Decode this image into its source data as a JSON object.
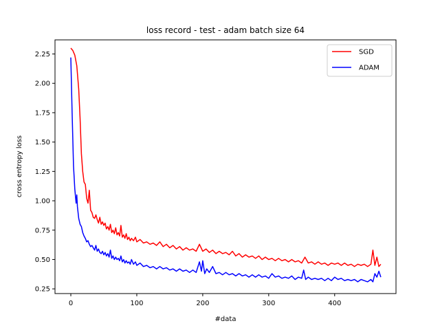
{
  "chart_data": {
    "type": "line",
    "title": "loss record - test - adam batch size 64",
    "xlabel": "#data",
    "ylabel": "cross entropy loss",
    "xlim": [
      -24,
      493
    ],
    "ylim": [
      0.21,
      2.37
    ],
    "xticks": [
      0,
      100,
      200,
      300,
      400
    ],
    "xtick_labels": [
      "0",
      "100",
      "200",
      "300",
      "400"
    ],
    "yticks": [
      0.25,
      0.5,
      0.75,
      1.0,
      1.25,
      1.5,
      1.75,
      2.0,
      2.25
    ],
    "ytick_labels": [
      "0.25",
      "0.50",
      "0.75",
      "1.00",
      "1.25",
      "1.50",
      "1.75",
      "2.00",
      "2.25"
    ],
    "grid": false,
    "legend_position": "top-right",
    "series": [
      {
        "name": "SGD",
        "color": "#ff0000",
        "points": [
          [
            0,
            2.3
          ],
          [
            3,
            2.28
          ],
          [
            6,
            2.24
          ],
          [
            9,
            2.15
          ],
          [
            12,
            1.95
          ],
          [
            14,
            1.7
          ],
          [
            16,
            1.4
          ],
          [
            18,
            1.25
          ],
          [
            20,
            1.16
          ],
          [
            22,
            1.14
          ],
          [
            24,
            1.02
          ],
          [
            26,
            0.98
          ],
          [
            28,
            1.09
          ],
          [
            30,
            0.92
          ],
          [
            32,
            0.9
          ],
          [
            34,
            0.86
          ],
          [
            36,
            0.85
          ],
          [
            38,
            0.88
          ],
          [
            40,
            0.84
          ],
          [
            42,
            0.81
          ],
          [
            44,
            0.86
          ],
          [
            46,
            0.8
          ],
          [
            48,
            0.82
          ],
          [
            50,
            0.79
          ],
          [
            52,
            0.81
          ],
          [
            54,
            0.76
          ],
          [
            56,
            0.78
          ],
          [
            58,
            0.75
          ],
          [
            60,
            0.8
          ],
          [
            62,
            0.73
          ],
          [
            64,
            0.75
          ],
          [
            66,
            0.72
          ],
          [
            68,
            0.77
          ],
          [
            70,
            0.71
          ],
          [
            72,
            0.73
          ],
          [
            74,
            0.7
          ],
          [
            76,
            0.79
          ],
          [
            78,
            0.69
          ],
          [
            80,
            0.71
          ],
          [
            82,
            0.68
          ],
          [
            84,
            0.72
          ],
          [
            86,
            0.67
          ],
          [
            88,
            0.69
          ],
          [
            90,
            0.66
          ],
          [
            92,
            0.68
          ],
          [
            95,
            0.66
          ],
          [
            98,
            0.69
          ],
          [
            100,
            0.65
          ],
          [
            105,
            0.67
          ],
          [
            110,
            0.64
          ],
          [
            115,
            0.65
          ],
          [
            120,
            0.63
          ],
          [
            125,
            0.64
          ],
          [
            130,
            0.62
          ],
          [
            135,
            0.65
          ],
          [
            140,
            0.61
          ],
          [
            145,
            0.63
          ],
          [
            150,
            0.6
          ],
          [
            155,
            0.62
          ],
          [
            160,
            0.59
          ],
          [
            165,
            0.61
          ],
          [
            170,
            0.58
          ],
          [
            175,
            0.6
          ],
          [
            180,
            0.58
          ],
          [
            185,
            0.59
          ],
          [
            190,
            0.57
          ],
          [
            195,
            0.63
          ],
          [
            200,
            0.57
          ],
          [
            205,
            0.59
          ],
          [
            210,
            0.56
          ],
          [
            215,
            0.58
          ],
          [
            220,
            0.55
          ],
          [
            225,
            0.57
          ],
          [
            230,
            0.55
          ],
          [
            235,
            0.56
          ],
          [
            240,
            0.54
          ],
          [
            245,
            0.57
          ],
          [
            250,
            0.53
          ],
          [
            255,
            0.55
          ],
          [
            260,
            0.52
          ],
          [
            265,
            0.54
          ],
          [
            270,
            0.52
          ],
          [
            275,
            0.53
          ],
          [
            280,
            0.51
          ],
          [
            285,
            0.53
          ],
          [
            290,
            0.5
          ],
          [
            295,
            0.52
          ],
          [
            300,
            0.5
          ],
          [
            305,
            0.51
          ],
          [
            310,
            0.49
          ],
          [
            315,
            0.51
          ],
          [
            320,
            0.49
          ],
          [
            325,
            0.5
          ],
          [
            330,
            0.48
          ],
          [
            335,
            0.5
          ],
          [
            340,
            0.48
          ],
          [
            345,
            0.49
          ],
          [
            350,
            0.47
          ],
          [
            355,
            0.52
          ],
          [
            360,
            0.47
          ],
          [
            365,
            0.48
          ],
          [
            370,
            0.46
          ],
          [
            375,
            0.48
          ],
          [
            380,
            0.46
          ],
          [
            385,
            0.47
          ],
          [
            390,
            0.45
          ],
          [
            395,
            0.47
          ],
          [
            400,
            0.46
          ],
          [
            405,
            0.47
          ],
          [
            410,
            0.45
          ],
          [
            415,
            0.47
          ],
          [
            420,
            0.45
          ],
          [
            425,
            0.46
          ],
          [
            430,
            0.44
          ],
          [
            435,
            0.46
          ],
          [
            440,
            0.45
          ],
          [
            445,
            0.46
          ],
          [
            450,
            0.44
          ],
          [
            455,
            0.46
          ],
          [
            458,
            0.58
          ],
          [
            461,
            0.45
          ],
          [
            464,
            0.52
          ],
          [
            467,
            0.44
          ],
          [
            470,
            0.46
          ]
        ]
      },
      {
        "name": "ADAM",
        "color": "#0000ff",
        "points": [
          [
            0,
            2.22
          ],
          [
            2,
            1.75
          ],
          [
            4,
            1.3
          ],
          [
            6,
            1.1
          ],
          [
            8,
            0.98
          ],
          [
            9,
            1.05
          ],
          [
            10,
            0.95
          ],
          [
            12,
            0.85
          ],
          [
            14,
            0.8
          ],
          [
            16,
            0.78
          ],
          [
            18,
            0.73
          ],
          [
            20,
            0.7
          ],
          [
            22,
            0.68
          ],
          [
            24,
            0.65
          ],
          [
            26,
            0.66
          ],
          [
            28,
            0.63
          ],
          [
            30,
            0.61
          ],
          [
            32,
            0.62
          ],
          [
            34,
            0.6
          ],
          [
            36,
            0.58
          ],
          [
            38,
            0.62
          ],
          [
            40,
            0.57
          ],
          [
            42,
            0.59
          ],
          [
            44,
            0.56
          ],
          [
            46,
            0.55
          ],
          [
            48,
            0.57
          ],
          [
            50,
            0.54
          ],
          [
            52,
            0.56
          ],
          [
            54,
            0.53
          ],
          [
            56,
            0.55
          ],
          [
            58,
            0.52
          ],
          [
            60,
            0.58
          ],
          [
            62,
            0.51
          ],
          [
            64,
            0.53
          ],
          [
            66,
            0.5
          ],
          [
            68,
            0.52
          ],
          [
            70,
            0.5
          ],
          [
            72,
            0.51
          ],
          [
            74,
            0.49
          ],
          [
            76,
            0.53
          ],
          [
            78,
            0.48
          ],
          [
            80,
            0.5
          ],
          [
            82,
            0.47
          ],
          [
            84,
            0.49
          ],
          [
            86,
            0.47
          ],
          [
            88,
            0.48
          ],
          [
            90,
            0.46
          ],
          [
            92,
            0.5
          ],
          [
            95,
            0.46
          ],
          [
            98,
            0.48
          ],
          [
            100,
            0.45
          ],
          [
            105,
            0.47
          ],
          [
            110,
            0.44
          ],
          [
            115,
            0.45
          ],
          [
            120,
            0.43
          ],
          [
            125,
            0.44
          ],
          [
            130,
            0.42
          ],
          [
            135,
            0.44
          ],
          [
            140,
            0.42
          ],
          [
            145,
            0.43
          ],
          [
            150,
            0.41
          ],
          [
            155,
            0.42
          ],
          [
            160,
            0.4
          ],
          [
            165,
            0.42
          ],
          [
            170,
            0.4
          ],
          [
            175,
            0.41
          ],
          [
            180,
            0.39
          ],
          [
            185,
            0.41
          ],
          [
            190,
            0.39
          ],
          [
            195,
            0.48
          ],
          [
            198,
            0.4
          ],
          [
            200,
            0.49
          ],
          [
            203,
            0.38
          ],
          [
            206,
            0.42
          ],
          [
            210,
            0.39
          ],
          [
            215,
            0.44
          ],
          [
            220,
            0.38
          ],
          [
            225,
            0.39
          ],
          [
            230,
            0.37
          ],
          [
            235,
            0.39
          ],
          [
            240,
            0.37
          ],
          [
            245,
            0.38
          ],
          [
            250,
            0.36
          ],
          [
            255,
            0.38
          ],
          [
            260,
            0.36
          ],
          [
            265,
            0.37
          ],
          [
            270,
            0.35
          ],
          [
            275,
            0.37
          ],
          [
            280,
            0.35
          ],
          [
            285,
            0.37
          ],
          [
            290,
            0.35
          ],
          [
            295,
            0.36
          ],
          [
            300,
            0.34
          ],
          [
            305,
            0.38
          ],
          [
            310,
            0.35
          ],
          [
            315,
            0.36
          ],
          [
            320,
            0.34
          ],
          [
            325,
            0.35
          ],
          [
            330,
            0.34
          ],
          [
            335,
            0.36
          ],
          [
            340,
            0.33
          ],
          [
            345,
            0.35
          ],
          [
            350,
            0.34
          ],
          [
            353,
            0.41
          ],
          [
            356,
            0.33
          ],
          [
            360,
            0.35
          ],
          [
            365,
            0.33
          ],
          [
            370,
            0.34
          ],
          [
            375,
            0.33
          ],
          [
            380,
            0.34
          ],
          [
            385,
            0.32
          ],
          [
            390,
            0.34
          ],
          [
            395,
            0.32
          ],
          [
            400,
            0.35
          ],
          [
            405,
            0.33
          ],
          [
            410,
            0.34
          ],
          [
            415,
            0.32
          ],
          [
            420,
            0.33
          ],
          [
            425,
            0.32
          ],
          [
            430,
            0.33
          ],
          [
            435,
            0.31
          ],
          [
            440,
            0.33
          ],
          [
            445,
            0.32
          ],
          [
            450,
            0.31
          ],
          [
            455,
            0.33
          ],
          [
            458,
            0.31
          ],
          [
            461,
            0.38
          ],
          [
            464,
            0.35
          ],
          [
            467,
            0.4
          ],
          [
            470,
            0.35
          ]
        ]
      }
    ]
  }
}
